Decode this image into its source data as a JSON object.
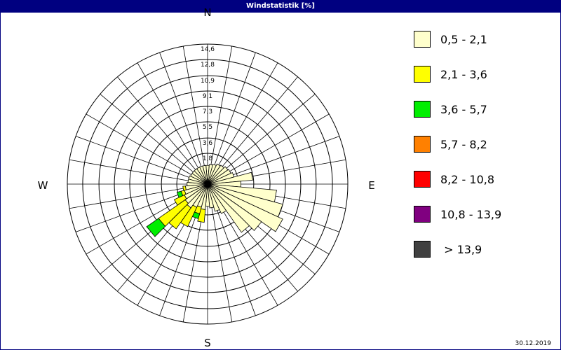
{
  "window": {
    "title": "Windstatistik [%]",
    "date": "30.12.2019"
  },
  "chart_data": {
    "type": "wind-rose",
    "title": "Windstatistik [%]",
    "directions": {
      "N": "N",
      "E": "E",
      "S": "S",
      "W": "W"
    },
    "radial_ticks": [
      "1,8",
      "3,6",
      "5,5",
      "7,3",
      "9,1",
      "10,9",
      "12,8",
      "14,6"
    ],
    "radial_tick_values": [
      1.8,
      3.6,
      5.5,
      7.3,
      9.1,
      10.9,
      12.8,
      14.6
    ],
    "rmax": 14.6,
    "sector_width_deg": 10,
    "classes": [
      {
        "label": "0,5 - 2,1",
        "color": "#ffffcc"
      },
      {
        "label": "2,1 - 3,6",
        "color": "#ffff00"
      },
      {
        "label": "3,6 - 5,7",
        "color": "#00ee00"
      },
      {
        "label": "5,7 - 8,2",
        "color": "#ff8000"
      },
      {
        "label": "8,2 - 10,8",
        "color": "#ff0000"
      },
      {
        "label": "10,8 - 13,9",
        "color": "#800080"
      },
      {
        "label": " > 13,9",
        "color": "#404040"
      }
    ],
    "sectors": [
      {
        "dir": 0,
        "values": [
          0.4,
          0,
          0,
          0,
          0,
          0,
          0
        ]
      },
      {
        "dir": 10,
        "values": [
          0.5,
          0,
          0,
          0,
          0,
          0,
          0
        ]
      },
      {
        "dir": 20,
        "values": [
          0.6,
          0,
          0,
          0,
          0,
          0,
          0
        ]
      },
      {
        "dir": 30,
        "values": [
          0.8,
          0,
          0,
          0,
          0,
          0,
          0
        ]
      },
      {
        "dir": 40,
        "values": [
          0.9,
          0,
          0,
          0,
          0,
          0,
          0
        ]
      },
      {
        "dir": 50,
        "values": [
          1.1,
          0,
          0,
          0,
          0,
          0,
          0
        ]
      },
      {
        "dir": 60,
        "values": [
          1.2,
          0,
          0,
          0,
          0,
          0,
          0
        ]
      },
      {
        "dir": 70,
        "values": [
          1.4,
          0,
          0,
          0,
          0,
          0,
          0
        ]
      },
      {
        "dir": 80,
        "values": [
          3.5,
          0,
          0,
          0,
          0,
          0,
          0
        ]
      },
      {
        "dir": 90,
        "values": [
          2.1,
          0,
          0,
          0,
          0,
          0,
          0
        ]
      },
      {
        "dir": 100,
        "values": [
          6.3,
          0,
          0,
          0,
          0,
          0,
          0
        ]
      },
      {
        "dir": 110,
        "values": [
          7.3,
          0,
          0,
          0,
          0,
          0,
          0
        ]
      },
      {
        "dir": 120,
        "values": [
          7.9,
          0,
          0,
          0,
          0,
          0,
          0
        ]
      },
      {
        "dir": 130,
        "values": [
          5.9,
          0,
          0,
          0,
          0,
          0,
          0
        ]
      },
      {
        "dir": 140,
        "values": [
          5.1,
          0,
          0,
          0,
          0,
          0,
          0
        ]
      },
      {
        "dir": 150,
        "values": [
          2.0,
          0,
          0,
          0,
          0,
          0,
          0
        ]
      },
      {
        "dir": 160,
        "values": [
          1.5,
          0,
          0,
          0,
          0,
          0,
          0
        ]
      },
      {
        "dir": 170,
        "values": [
          1.0,
          0,
          0,
          0,
          0,
          0,
          0
        ]
      },
      {
        "dir": 180,
        "values": [
          0.8,
          0,
          0,
          0,
          0,
          0,
          0
        ]
      },
      {
        "dir": 190,
        "values": [
          1.2,
          1.5,
          0,
          0,
          0,
          0,
          0
        ]
      },
      {
        "dir": 200,
        "values": [
          1.0,
          0.8,
          0.6,
          0,
          0,
          0,
          0
        ]
      },
      {
        "dir": 210,
        "values": [
          1.2,
          2.5,
          0,
          0,
          0,
          0,
          0
        ]
      },
      {
        "dir": 220,
        "values": [
          1.6,
          3.0,
          0,
          0,
          0,
          0,
          0
        ]
      },
      {
        "dir": 230,
        "values": [
          1.4,
          3.8,
          1.7,
          0,
          0,
          0,
          0
        ]
      },
      {
        "dir": 240,
        "values": [
          1.2,
          1.3,
          0,
          0,
          0,
          0,
          0
        ]
      },
      {
        "dir": 250,
        "values": [
          1.0,
          0.4,
          0.5,
          0,
          0,
          0,
          0
        ]
      },
      {
        "dir": 260,
        "values": [
          0.8,
          0.3,
          0,
          0,
          0,
          0,
          0
        ]
      },
      {
        "dir": 270,
        "values": [
          0.6,
          0,
          0,
          0,
          0,
          0,
          0
        ]
      },
      {
        "dir": 280,
        "values": [
          0.5,
          0,
          0,
          0,
          0,
          0,
          0
        ]
      },
      {
        "dir": 290,
        "values": [
          0.5,
          0,
          0,
          0,
          0,
          0,
          0
        ]
      },
      {
        "dir": 300,
        "values": [
          0.4,
          0,
          0,
          0,
          0,
          0,
          0
        ]
      },
      {
        "dir": 310,
        "values": [
          0.4,
          0,
          0,
          0,
          0,
          0,
          0
        ]
      },
      {
        "dir": 320,
        "values": [
          0.4,
          0,
          0,
          0,
          0,
          0,
          0
        ]
      },
      {
        "dir": 330,
        "values": [
          0.4,
          0,
          0,
          0,
          0,
          0,
          0
        ]
      },
      {
        "dir": 340,
        "values": [
          0.4,
          0,
          0,
          0,
          0,
          0,
          0
        ]
      },
      {
        "dir": 350,
        "values": [
          0.4,
          0,
          0,
          0,
          0,
          0,
          0
        ]
      }
    ]
  }
}
